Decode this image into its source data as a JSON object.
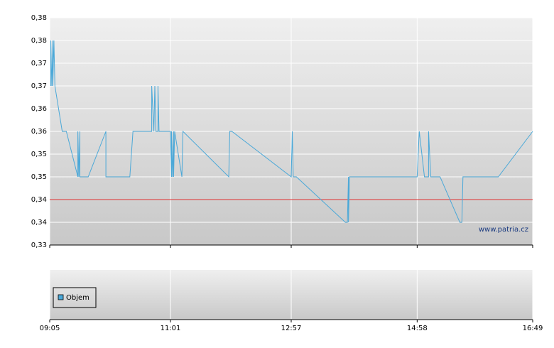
{
  "chart_data": {
    "type": "line",
    "x": [
      "09:06",
      "09:06",
      "09:07",
      "09:08",
      "09:08",
      "09:09",
      "09:10",
      "09:17",
      "09:21",
      "09:32",
      "09:32",
      "09:33",
      "09:34",
      "09:34",
      "09:42",
      "09:59",
      "09:59",
      "10:22",
      "10:25",
      "10:43",
      "10:43",
      "10:45",
      "10:46",
      "10:47",
      "10:49",
      "10:49",
      "10:50",
      "11:01",
      "11:02",
      "11:02",
      "11:03",
      "11:04",
      "11:04",
      "11:05",
      "11:12",
      "11:13",
      "11:57",
      "11:58",
      "12:00",
      "12:57",
      "12:58",
      "12:59",
      "13:02",
      "13:49",
      "13:51",
      "13:52",
      "13:52",
      "13:53",
      "14:58",
      "15:00",
      "15:05",
      "15:09",
      "15:09",
      "15:11",
      "15:20",
      "15:39",
      "15:41",
      "15:42",
      "16:16",
      "16:49"
    ],
    "series": [
      {
        "color": "#4aa8d8",
        "values": [
          0.365,
          0.375,
          0.365,
          0.375,
          0.365,
          0.375,
          0.365,
          0.355,
          0.355,
          0.345,
          0.355,
          0.345,
          0.355,
          0.345,
          0.345,
          0.355,
          0.345,
          0.345,
          0.355,
          0.355,
          0.365,
          0.355,
          0.365,
          0.355,
          0.355,
          0.365,
          0.355,
          0.355,
          0.345,
          0.355,
          0.345,
          0.355,
          0.345,
          0.355,
          0.345,
          0.355,
          0.345,
          0.355,
          0.355,
          0.345,
          0.355,
          0.345,
          0.345,
          0.335,
          0.335,
          0.345,
          0.335,
          0.345,
          0.345,
          0.355,
          0.345,
          0.345,
          0.355,
          0.345,
          0.345,
          0.335,
          0.335,
          0.345,
          0.345,
          0.355
        ]
      }
    ],
    "reference_line": {
      "value": 0.34,
      "color": "#e03030"
    },
    "watermark": "www.patria.cz",
    "volume_legend": {
      "name": "Objem",
      "color": "#4aa8d8"
    },
    "xlim": [
      "09:05",
      "16:49"
    ],
    "xticks": [
      "09:05",
      "11:01",
      "12:57",
      "14:58",
      "16:49"
    ],
    "ylim": [
      0.33,
      0.38
    ],
    "yticks": [
      {
        "value": 0.33,
        "label": "0,33"
      },
      {
        "value": 0.335,
        "label": "0,34"
      },
      {
        "value": 0.34,
        "label": "0,34"
      },
      {
        "value": 0.345,
        "label": "0,35"
      },
      {
        "value": 0.35,
        "label": "0,35"
      },
      {
        "value": 0.355,
        "label": "0,36"
      },
      {
        "value": 0.36,
        "label": "0,36"
      },
      {
        "value": 0.365,
        "label": "0,37"
      },
      {
        "value": 0.37,
        "label": "0,37"
      },
      {
        "value": 0.375,
        "label": "0,38"
      },
      {
        "value": 0.38,
        "label": "0,38"
      }
    ],
    "grid": true
  }
}
